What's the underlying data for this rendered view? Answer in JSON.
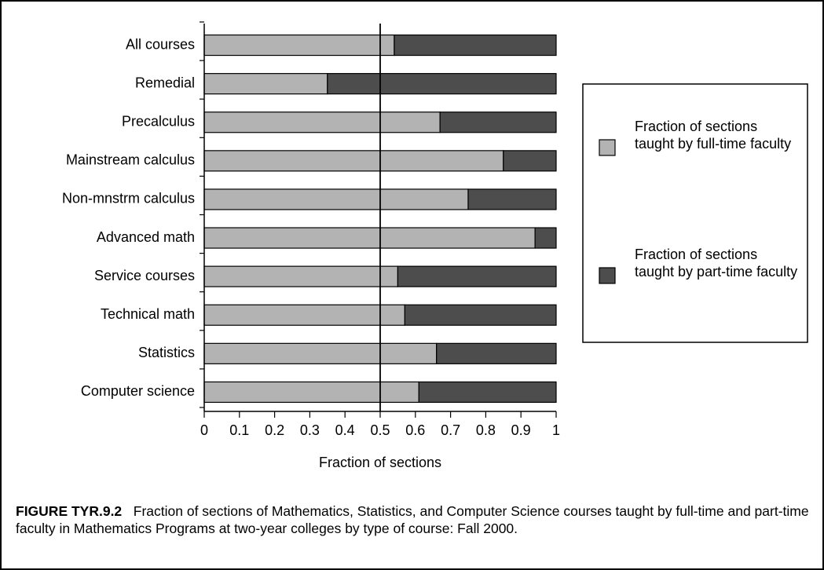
{
  "chart_data": {
    "type": "stacked_barh",
    "categories": [
      "All courses",
      "Remedial",
      "Precalculus",
      "Mainstream calculus",
      "Non-mnstrm calculus",
      "Advanced math",
      "Service courses",
      "Technical math",
      "Statistics",
      "Computer science"
    ],
    "series": [
      {
        "name": "Fraction of sections taught by full-time faculty",
        "color": "#b3b3b3",
        "values": [
          0.54,
          0.35,
          0.67,
          0.85,
          0.75,
          0.94,
          0.55,
          0.57,
          0.66,
          0.61
        ]
      },
      {
        "name": "Fraction of sections taught by part-time faculty",
        "color": "#4d4d4d",
        "values": [
          0.46,
          0.65,
          0.33,
          0.15,
          0.25,
          0.06,
          0.45,
          0.43,
          0.34,
          0.39
        ]
      }
    ],
    "xlim": [
      0,
      1
    ],
    "xticks": [
      0,
      0.1,
      0.2,
      0.3,
      0.4,
      0.5,
      0.6,
      0.7,
      0.8,
      0.9,
      1
    ],
    "reference_line": 0.5,
    "xlabel": "Fraction of sections",
    "caption_label": "FIGURE TYR.9.2",
    "caption": "Fraction of sections of Mathematics, Statistics, and Computer Science courses taught by full-time and part-time faculty in Mathematics Programs at two-year colleges by type of course: Fall 2000."
  }
}
